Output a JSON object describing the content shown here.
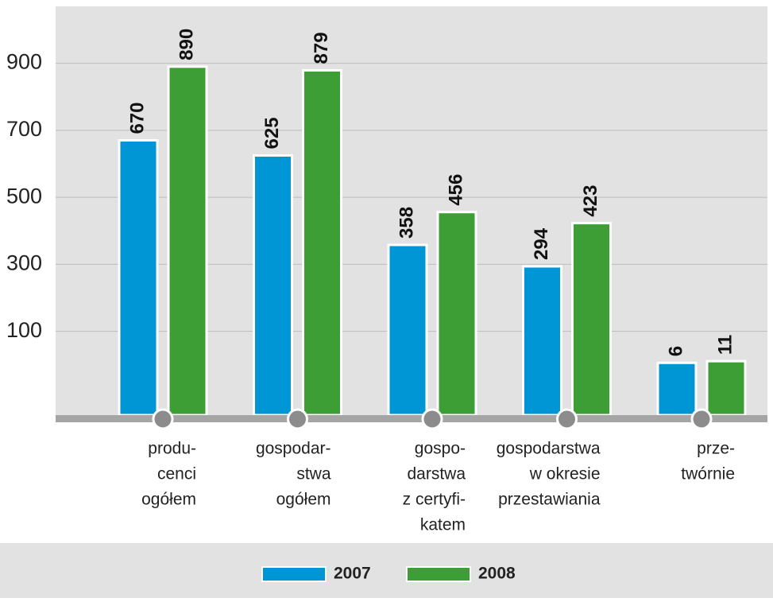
{
  "chart_data": {
    "type": "bar",
    "categories": [
      [
        "produ-",
        "cenci",
        "ogółem"
      ],
      [
        "gospodar-",
        "stwa",
        "ogółem"
      ],
      [
        "gospo-",
        "darstwa",
        "z certyfi-",
        "katem"
      ],
      [
        "gospodarstwa",
        "w okresie",
        "przestawiania"
      ],
      [
        "prze-",
        "twórnie"
      ]
    ],
    "series": [
      {
        "name": "2007",
        "color": "#0096d6",
        "values": [
          670,
          625,
          358,
          294,
          6
        ]
      },
      {
        "name": "2008",
        "color": "#3c9e35",
        "values": [
          890,
          879,
          456,
          423,
          11
        ]
      }
    ],
    "ylim": [
      -150,
      1070
    ],
    "yticks": [
      100,
      300,
      500,
      700,
      900
    ],
    "grid": true,
    "legend": "bottom"
  }
}
